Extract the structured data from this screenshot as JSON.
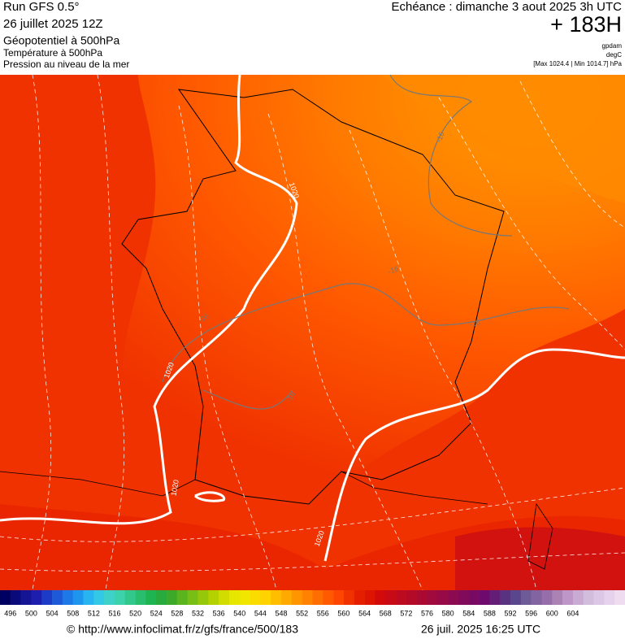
{
  "header": {
    "run": "Run GFS 0.5°",
    "date": "26 juillet 2025 12Z",
    "line1": "Géopotentiel à 500hPa",
    "line2": "Température à 500hPa",
    "line3": "Pression au niveau de la mer",
    "echeance": "Echéance : dimanche 3 aout 2025 3h UTC",
    "lead": "+ 183H",
    "unit1": "gpdam",
    "unit2": "degC",
    "pressure": "[Max 1024.4 | Min 1014.7] hPa"
  },
  "map": {
    "labels": [
      "1020",
      "1020",
      "1020",
      "1020",
      "-16",
      "-16",
      "-16",
      "-16",
      "-16"
    ]
  },
  "colorbar": {
    "labels": [
      496,
      500,
      504,
      508,
      512,
      516,
      520,
      524,
      528,
      532,
      536,
      540,
      544,
      548,
      552,
      556,
      560,
      564,
      568,
      572,
      576,
      580,
      584,
      588,
      592,
      596,
      600,
      604
    ],
    "colors": [
      "#000060",
      "#0a0a7a",
      "#141494",
      "#1e1eae",
      "#1c3cc8",
      "#1e5ad8",
      "#1e78e6",
      "#1e96f0",
      "#28b4f0",
      "#32c8e6",
      "#3cd2c8",
      "#3cd2aa",
      "#32c88c",
      "#28be6e",
      "#1eb450",
      "#28aa3c",
      "#3caa28",
      "#5ab41e",
      "#78be14",
      "#96c80a",
      "#b4d200",
      "#d2dc00",
      "#e6e600",
      "#f0e600",
      "#fadc00",
      "#ffd200",
      "#ffbe00",
      "#ffaa00",
      "#ff9600",
      "#ff8200",
      "#ff6e00",
      "#ff5a00",
      "#ff4600",
      "#f03200",
      "#e61e00",
      "#dc1400",
      "#d20a0a",
      "#c80a14",
      "#be0a1e",
      "#b40a28",
      "#aa0a32",
      "#a00a3c",
      "#960a46",
      "#8c0a50",
      "#820a5a",
      "#780a64",
      "#6e0a6e",
      "#641e78",
      "#5a3282",
      "#5a468c",
      "#6e5a96",
      "#8264a0",
      "#966eaa",
      "#aa82b4",
      "#be96c8",
      "#c8aad2",
      "#d2bedc",
      "#dcc8e6",
      "#e6d2ec",
      "#f0dcf0"
    ]
  },
  "footer": {
    "url": "© http://www.infoclimat.fr/z/gfs/france/500/183",
    "stamp": "26 juil. 2025 16:25 UTC"
  }
}
